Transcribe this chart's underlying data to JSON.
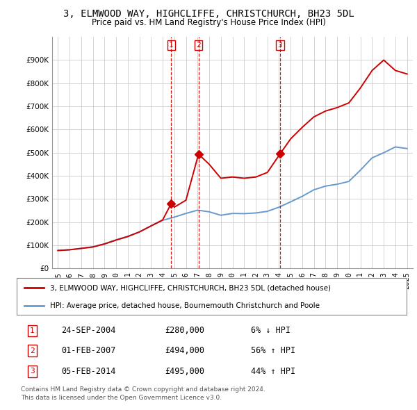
{
  "title": "3, ELMWOOD WAY, HIGHCLIFFE, CHRISTCHURCH, BH23 5DL",
  "subtitle": "Price paid vs. HM Land Registry's House Price Index (HPI)",
  "legend_property": "3, ELMWOOD WAY, HIGHCLIFFE, CHRISTCHURCH, BH23 5DL (detached house)",
  "legend_hpi": "HPI: Average price, detached house, Bournemouth Christchurch and Poole",
  "footnote1": "Contains HM Land Registry data © Crown copyright and database right 2024.",
  "footnote2": "This data is licensed under the Open Government Licence v3.0.",
  "transactions": [
    {
      "num": 1,
      "date": "24-SEP-2004",
      "price": "£280,000",
      "change": "6% ↓ HPI"
    },
    {
      "num": 2,
      "date": "01-FEB-2007",
      "price": "£494,000",
      "change": "56% ↑ HPI"
    },
    {
      "num": 3,
      "date": "05-FEB-2014",
      "price": "£495,000",
      "change": "44% ↑ HPI"
    }
  ],
  "transaction_years": [
    2004.73,
    2007.08,
    2014.09
  ],
  "transaction_prices": [
    280000,
    494000,
    495000
  ],
  "property_color": "#cc0000",
  "hpi_color": "#6699cc",
  "vline_color": "#cc0000",
  "background_color": "#ffffff",
  "grid_color": "#cccccc",
  "ylim": [
    0,
    1000000
  ],
  "xlim": [
    1994.5,
    2025.5
  ],
  "yticks": [
    0,
    100000,
    200000,
    300000,
    400000,
    500000,
    600000,
    700000,
    800000,
    900000
  ],
  "ytick_labels": [
    "£0",
    "£100K",
    "£200K",
    "£300K",
    "£400K",
    "£500K",
    "£600K",
    "£700K",
    "£800K",
    "£900K"
  ],
  "xticks": [
    1995,
    1996,
    1997,
    1998,
    1999,
    2000,
    2001,
    2002,
    2003,
    2004,
    2005,
    2006,
    2007,
    2008,
    2009,
    2010,
    2011,
    2012,
    2013,
    2014,
    2015,
    2016,
    2017,
    2018,
    2019,
    2020,
    2021,
    2022,
    2023,
    2024,
    2025
  ],
  "hpi_years": [
    1995,
    1996,
    1997,
    1998,
    1999,
    2000,
    2001,
    2002,
    2003,
    2004,
    2005,
    2006,
    2007,
    2008,
    2009,
    2010,
    2011,
    2012,
    2013,
    2014,
    2015,
    2016,
    2017,
    2018,
    2019,
    2020,
    2021,
    2022,
    2023,
    2024,
    2025
  ],
  "hpi_values": [
    78000,
    81000,
    87000,
    94000,
    107000,
    124000,
    139000,
    158000,
    184000,
    208000,
    222000,
    238000,
    252000,
    245000,
    230000,
    238000,
    237000,
    240000,
    247000,
    265000,
    288000,
    312000,
    340000,
    356000,
    364000,
    376000,
    425000,
    478000,
    500000,
    525000,
    518000
  ],
  "prop_years": [
    1995,
    1996,
    1997,
    1998,
    1999,
    2000,
    2001,
    2002,
    2003,
    2004.0,
    2004.73,
    2005,
    2006,
    2007.08,
    2008,
    2009,
    2010,
    2011,
    2012,
    2013,
    2014.09,
    2015,
    2016,
    2017,
    2018,
    2019,
    2020,
    2021,
    2022,
    2023,
    2024,
    2025
  ],
  "prop_values": [
    78000,
    81000,
    87000,
    93000,
    106000,
    123000,
    138000,
    158000,
    184000,
    210000,
    280000,
    265000,
    295000,
    494000,
    450000,
    390000,
    395000,
    390000,
    395000,
    415000,
    495000,
    560000,
    610000,
    655000,
    680000,
    695000,
    715000,
    780000,
    855000,
    900000,
    855000,
    840000
  ]
}
